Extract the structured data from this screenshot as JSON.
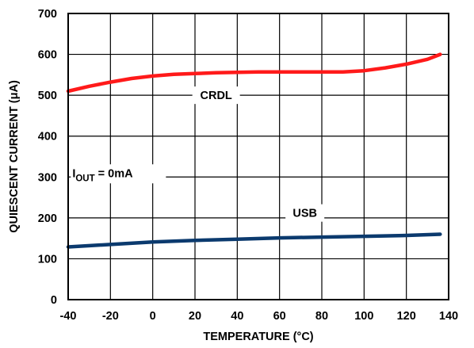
{
  "chart_data": {
    "type": "line",
    "xlabel": "TEMPERATURE (°C)",
    "ylabel": "QUIESCENT CURRENT (μA)",
    "xlim": [
      -40,
      140
    ],
    "ylim": [
      0,
      700
    ],
    "x_ticks": [
      -40,
      -20,
      0,
      20,
      40,
      60,
      80,
      100,
      120,
      140
    ],
    "y_ticks": [
      0,
      100,
      200,
      300,
      400,
      500,
      600,
      700
    ],
    "grid": true,
    "series": [
      {
        "name": "CRDL",
        "color": "#ff1a1a",
        "x": [
          -40,
          -30,
          -20,
          -10,
          0,
          10,
          20,
          30,
          40,
          50,
          60,
          70,
          80,
          90,
          100,
          110,
          120,
          130,
          136
        ],
        "y": [
          510,
          522,
          532,
          541,
          547,
          551,
          553,
          555,
          556,
          557,
          557,
          557,
          557,
          557,
          560,
          567,
          576,
          588,
          600
        ]
      },
      {
        "name": "USB",
        "color": "#0b3a6e",
        "x": [
          -40,
          -20,
          0,
          20,
          40,
          60,
          80,
          100,
          120,
          136
        ],
        "y": [
          129,
          135,
          141,
          145,
          148,
          151,
          153,
          155,
          157,
          160
        ]
      }
    ],
    "annotation": {
      "main": "I",
      "sub": "OUT",
      "rest": " = 0mA",
      "x": -38,
      "y": 300
    }
  }
}
